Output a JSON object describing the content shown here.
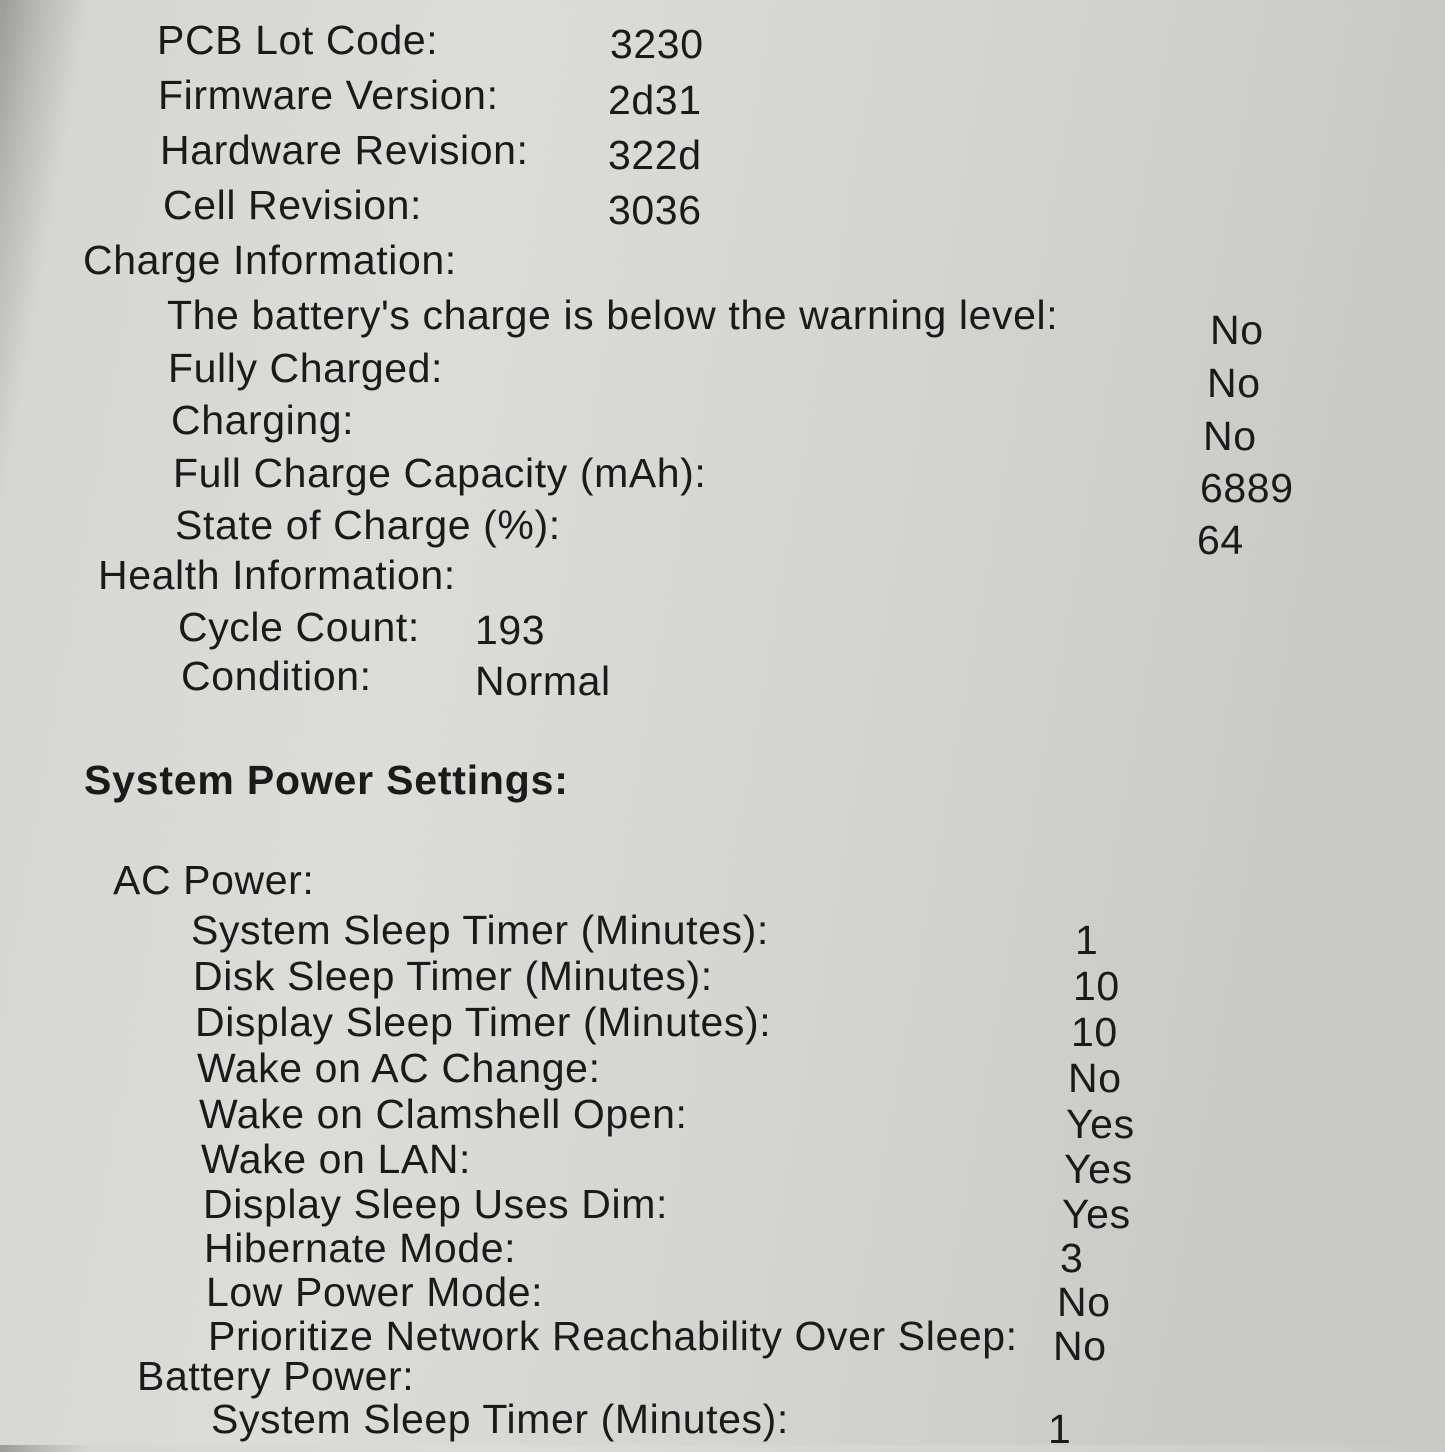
{
  "battery_info": {
    "model_rows": [
      {
        "label": "PCB Lot Code:",
        "value": "3230"
      },
      {
        "label": "Firmware Version:",
        "value": "2d31"
      },
      {
        "label": "Hardware Revision:",
        "value": "322d"
      },
      {
        "label": "Cell Revision:",
        "value": "3036"
      }
    ],
    "charge_title": "Charge Information:",
    "charge_rows": [
      {
        "label": "The battery's charge is below the warning level:",
        "value": "No"
      },
      {
        "label": "Fully Charged:",
        "value": "No"
      },
      {
        "label": "Charging:",
        "value": "No"
      },
      {
        "label": "Full Charge Capacity (mAh):",
        "value": "6889"
      },
      {
        "label": "State of Charge (%):",
        "value": "64"
      }
    ],
    "health_title": "Health Information:",
    "health_rows": [
      {
        "label": "Cycle Count:",
        "value": "193"
      },
      {
        "label": "Condition:",
        "value": "Normal"
      }
    ]
  },
  "power_settings": {
    "title": "System Power Settings:",
    "ac_title": "AC Power:",
    "ac_rows": [
      {
        "label": "System Sleep Timer (Minutes):",
        "value": "1"
      },
      {
        "label": "Disk Sleep Timer (Minutes):",
        "value": "10"
      },
      {
        "label": "Display Sleep Timer (Minutes):",
        "value": "10"
      },
      {
        "label": "Wake on AC Change:",
        "value": "No"
      },
      {
        "label": "Wake on Clamshell Open:",
        "value": "Yes"
      },
      {
        "label": "Wake on LAN:",
        "value": "Yes"
      },
      {
        "label": "Display Sleep Uses Dim:",
        "value": "Yes"
      },
      {
        "label": "Hibernate Mode:",
        "value": "3"
      },
      {
        "label": "Low Power Mode:",
        "value": "No"
      },
      {
        "label": "Prioritize Network Reachability Over Sleep:",
        "value": "No"
      }
    ],
    "battery_title": "Battery Power:",
    "battery_rows": [
      {
        "label": "System Sleep Timer (Minutes):",
        "value": "1"
      }
    ]
  }
}
